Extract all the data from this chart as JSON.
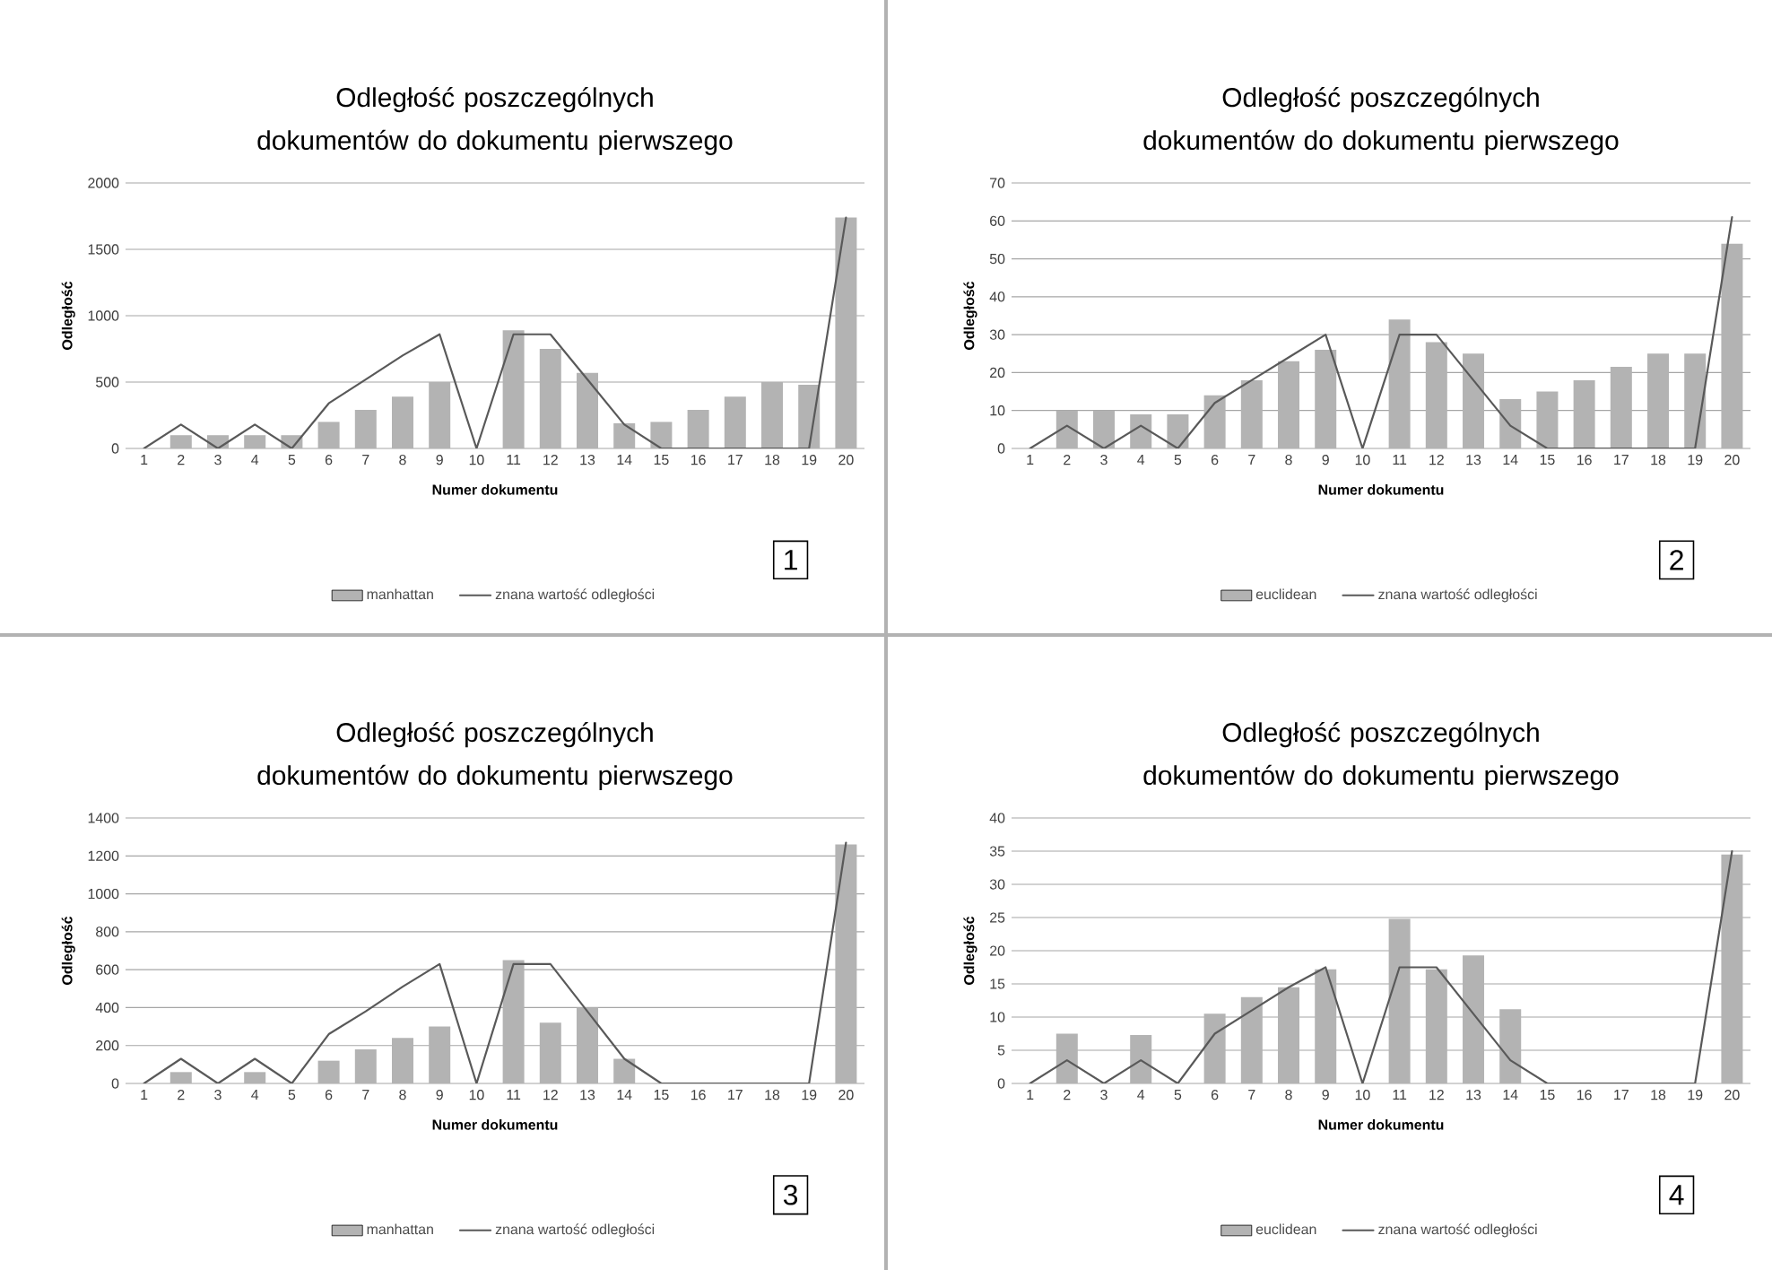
{
  "chart_data": [
    {
      "type": "bar",
      "title": "Odległość poszczególnych dokumentów do dokumentu pierwszego",
      "xlabel": "Numer dokumentu",
      "ylabel": "Odległość",
      "categories": [
        "1",
        "2",
        "3",
        "4",
        "5",
        "6",
        "7",
        "8",
        "9",
        "10",
        "11",
        "12",
        "13",
        "14",
        "15",
        "16",
        "17",
        "18",
        "19",
        "20"
      ],
      "series": [
        {
          "name": "manhattan",
          "color": "#b3b3b3",
          "values": [
            0,
            100,
            100,
            100,
            100,
            200,
            290,
            390,
            500,
            null,
            890,
            750,
            570,
            190,
            200,
            290,
            390,
            500,
            480,
            1740
          ]
        },
        {
          "name": "znana wartość odległości",
          "type": "line",
          "color": "#595959",
          "values": [
            0,
            180,
            0,
            180,
            0,
            340,
            520,
            700,
            860,
            0,
            860,
            860,
            520,
            180,
            0,
            0,
            0,
            0,
            0,
            1740
          ]
        }
      ],
      "ylim": [
        0,
        2000
      ],
      "yticks": [
        0,
        500,
        1000,
        1500,
        2000
      ],
      "grid": "y",
      "legend": "bottom",
      "annotations": [
        "1"
      ]
    },
    {
      "type": "bar",
      "title": "Odległość poszczególnych dokumentów do dokumentu pierwszego",
      "xlabel": "Numer dokumentu",
      "ylabel": "Odległość",
      "categories": [
        "1",
        "2",
        "3",
        "4",
        "5",
        "6",
        "7",
        "8",
        "9",
        "10",
        "11",
        "12",
        "13",
        "14",
        "15",
        "16",
        "17",
        "18",
        "19",
        "20"
      ],
      "series": [
        {
          "name": "euclidean",
          "color": "#b3b3b3",
          "values": [
            0,
            10,
            10,
            9,
            9,
            14,
            18,
            23,
            26,
            null,
            34,
            28,
            25,
            13,
            15,
            18,
            21.5,
            25,
            25,
            54
          ]
        },
        {
          "name": "znana wartość odległości",
          "type": "line",
          "color": "#595959",
          "values": [
            0,
            6,
            0,
            6,
            0,
            12,
            18,
            24,
            30,
            0,
            30,
            30,
            18,
            6,
            0,
            0,
            0,
            0,
            0,
            61
          ]
        }
      ],
      "ylim": [
        0,
        70
      ],
      "yticks": [
        0,
        10,
        20,
        30,
        40,
        50,
        60,
        70
      ],
      "grid": "y",
      "legend": "bottom",
      "annotations": [
        "2"
      ]
    },
    {
      "type": "bar",
      "title": "Odległość poszczególnych dokumentów do dokumentu pierwszego",
      "xlabel": "Numer dokumentu",
      "ylabel": "Odległość",
      "categories": [
        "1",
        "2",
        "3",
        "4",
        "5",
        "6",
        "7",
        "8",
        "9",
        "10",
        "11",
        "12",
        "13",
        "14",
        "15",
        "16",
        "17",
        "18",
        "19",
        "20"
      ],
      "series": [
        {
          "name": "manhattan",
          "color": "#b3b3b3",
          "values": [
            0,
            60,
            0,
            60,
            0,
            120,
            180,
            240,
            300,
            0,
            650,
            320,
            400,
            130,
            0,
            0,
            0,
            0,
            0,
            1260
          ]
        },
        {
          "name": "znana wartość odległości",
          "type": "line",
          "color": "#595959",
          "values": [
            0,
            130,
            0,
            130,
            0,
            260,
            380,
            510,
            630,
            0,
            630,
            630,
            380,
            130,
            0,
            0,
            0,
            0,
            0,
            1270
          ]
        }
      ],
      "ylim": [
        0,
        1400
      ],
      "yticks": [
        0,
        200,
        400,
        600,
        800,
        1000,
        1200,
        1400
      ],
      "grid": "y",
      "legend": "bottom",
      "annotations": [
        "3"
      ]
    },
    {
      "type": "bar",
      "title": "Odległość poszczególnych dokumentów do dokumentu pierwszego",
      "xlabel": "Numer dokumentu",
      "ylabel": "Odległość",
      "categories": [
        "1",
        "2",
        "3",
        "4",
        "5",
        "6",
        "7",
        "8",
        "9",
        "10",
        "11",
        "12",
        "13",
        "14",
        "15",
        "16",
        "17",
        "18",
        "19",
        "20"
      ],
      "series": [
        {
          "name": "euclidean",
          "color": "#b3b3b3",
          "values": [
            0,
            7.5,
            0,
            7.3,
            0,
            10.5,
            13,
            14.5,
            17.2,
            0,
            24.8,
            17.2,
            19.3,
            11.2,
            0,
            0,
            0,
            0,
            0,
            34.5
          ]
        },
        {
          "name": "znana wartość odległości",
          "type": "line",
          "color": "#595959",
          "values": [
            0,
            3.5,
            0,
            3.5,
            0,
            7.5,
            11,
            14.5,
            17.5,
            0,
            17.5,
            17.5,
            10.5,
            3.5,
            0,
            0,
            0,
            0,
            0,
            35
          ]
        }
      ],
      "ylim": [
        0,
        40
      ],
      "yticks": [
        0,
        5,
        10,
        15,
        20,
        25,
        30,
        35,
        40
      ],
      "grid": "y",
      "legend": "bottom",
      "annotations": [
        "4"
      ]
    }
  ]
}
